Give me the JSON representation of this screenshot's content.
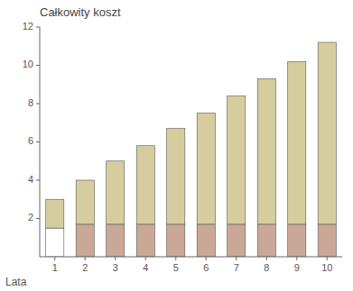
{
  "chart_data": {
    "type": "bar",
    "stacked": true,
    "grid": false,
    "title": "Całkowity koszt",
    "xlabel": "Lata",
    "categories": [
      "1",
      "2",
      "3",
      "4",
      "5",
      "6",
      "7",
      "8",
      "9",
      "10"
    ],
    "series": [
      {
        "colors": [
          "#ffffff",
          "#c9a898",
          "#c9a898",
          "#c9a898",
          "#c9a898",
          "#c9a898",
          "#c9a898",
          "#c9a898",
          "#c9a898",
          "#c9a898"
        ],
        "values": [
          1.5,
          1.7,
          1.7,
          1.7,
          1.7,
          1.7,
          1.7,
          1.7,
          1.7,
          1.7
        ]
      },
      {
        "color": "#d6cd9e",
        "values": [
          1.5,
          2.3,
          3.3,
          4.1,
          5.0,
          5.8,
          6.7,
          7.6,
          8.5,
          9.5
        ]
      }
    ],
    "ylim": [
      0,
      12
    ],
    "yticks": [
      2,
      4,
      6,
      8,
      10,
      12
    ]
  }
}
